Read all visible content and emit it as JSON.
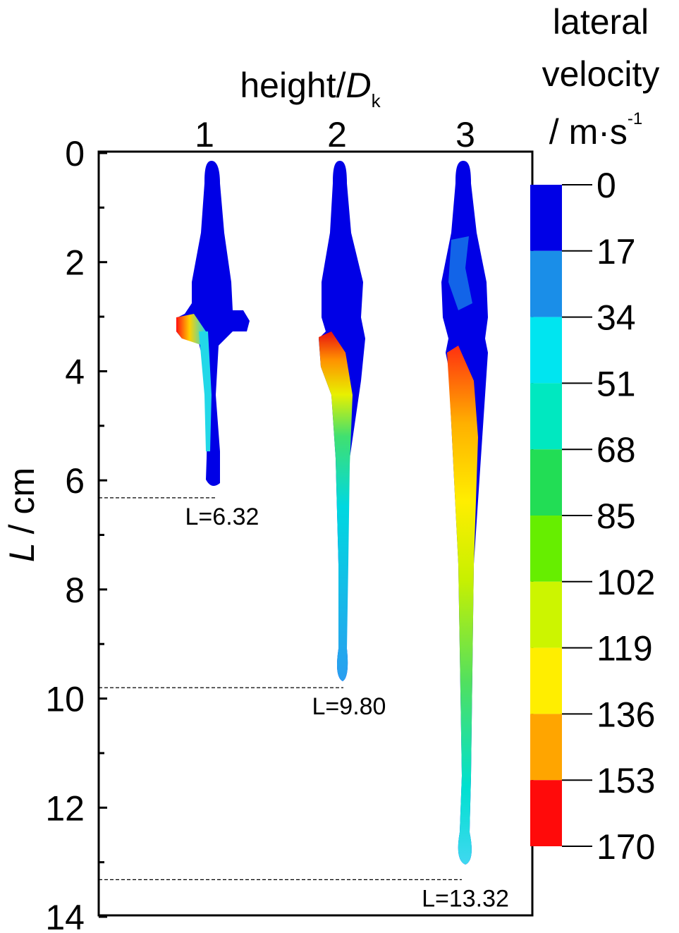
{
  "chart_data": {
    "type": "contour",
    "x_label": "height/",
    "x_label_variable": "D",
    "x_label_subscript": "k",
    "y_label_variable": "L",
    "y_label": "/ cm",
    "categories": [
      "1",
      "2",
      "3"
    ],
    "values": [
      6.32,
      9.8,
      13.32
    ],
    "value_labels": [
      "L=6.32",
      "L=9.80",
      "L=13.32"
    ],
    "ylim": [
      0,
      14
    ],
    "yticks": [
      0,
      2,
      4,
      6,
      8,
      10,
      12,
      14
    ],
    "yminor_ticks": [
      1,
      3,
      5,
      7,
      9,
      11,
      13
    ],
    "colorbar": {
      "title": [
        "lateral",
        "velocity",
        "/ m·s"
      ],
      "title_superscript": "-1",
      "lim": [
        0,
        170
      ],
      "ticks": [
        0,
        17,
        34,
        51,
        68,
        85,
        102,
        119,
        136,
        153,
        170
      ],
      "colors": [
        "#0000e6",
        "#1a8ee8",
        "#00e5f0",
        "#00e8c0",
        "#22dd55",
        "#66ee00",
        "#ccf500",
        "#ffee00",
        "#ffa500",
        "#ff0a0a"
      ]
    }
  }
}
